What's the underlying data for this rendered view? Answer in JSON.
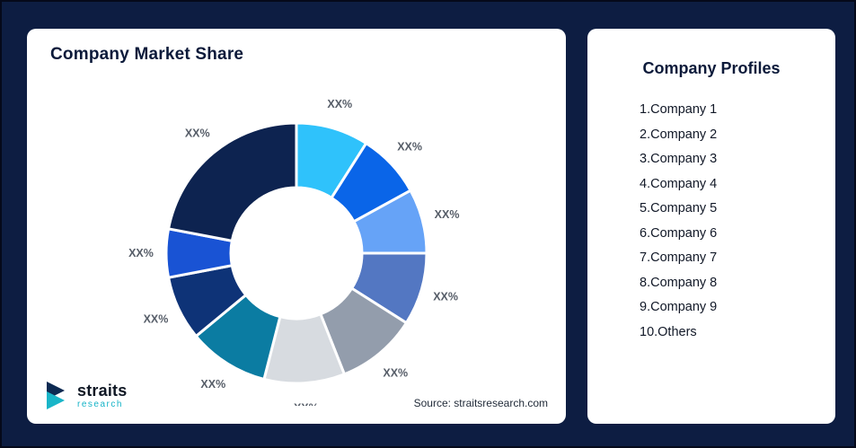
{
  "left_card": {
    "title": "Company Market Share",
    "source": "Source: straitsresearch.com",
    "logo": {
      "name": "straits",
      "sub": "research"
    }
  },
  "right_card": {
    "title": "Company Profiles",
    "items": [
      "1.Company 1",
      "2.Company 2",
      "3.Company 3",
      "4.Company 4",
      "5.Company 5",
      "6.Company 6",
      "7.Company 7",
      "8.Company 8",
      "9.Company 9",
      "10.Others"
    ]
  },
  "chart_data": {
    "type": "pie",
    "donut": true,
    "title": "Company Market Share",
    "legend_position": "none",
    "label_color": "#565D68",
    "segments": [
      {
        "label": "XX%",
        "value": 9,
        "color": "#2FC2FB"
      },
      {
        "label": "XX%",
        "value": 8,
        "color": "#0A65E8"
      },
      {
        "label": "XX%",
        "value": 8,
        "color": "#66A3F7"
      },
      {
        "label": "XX%",
        "value": 9,
        "color": "#5377C2"
      },
      {
        "label": "XX%",
        "value": 10,
        "color": "#939DAC"
      },
      {
        "label": "XX%",
        "value": 10,
        "color": "#D7DBE0"
      },
      {
        "label": "XX%",
        "value": 10,
        "color": "#0B7CA2"
      },
      {
        "label": "XX%",
        "value": 8,
        "color": "#0E3377"
      },
      {
        "label": "XX%",
        "value": 6,
        "color": "#1953D4"
      },
      {
        "label": "XX%",
        "value": 22,
        "color": "#0D2350"
      }
    ]
  }
}
